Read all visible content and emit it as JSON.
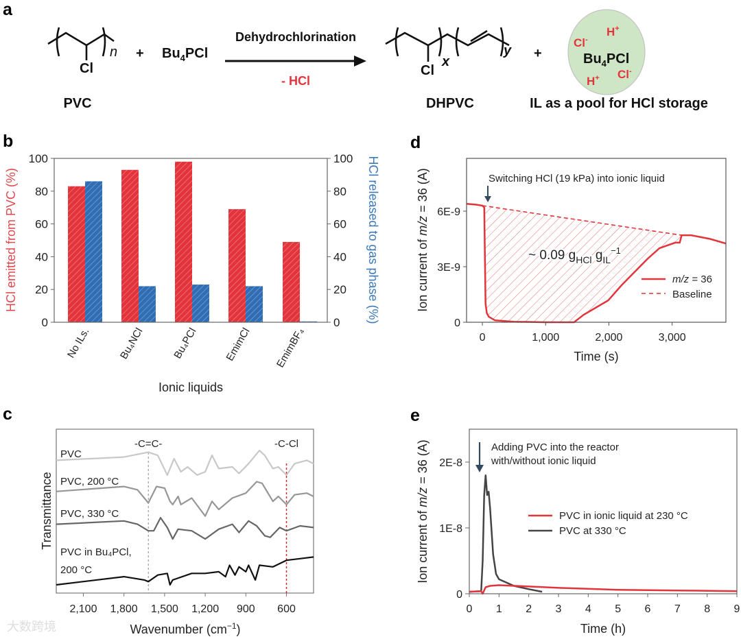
{
  "panel_labels": {
    "a": "a",
    "b": "b",
    "c": "c",
    "d": "d",
    "e": "e"
  },
  "scheme": {
    "reactant_label": "PVC",
    "reactant_cl": "Cl",
    "reactant_n": "n",
    "plus_1": "+",
    "reagent": {
      "a": "Bu",
      "sub": "4",
      "b": "PCl"
    },
    "arrow_top": "Dehydrochlorination",
    "arrow_bottom": "- HCl",
    "product_label": "DHPVC",
    "product_cl": "Cl",
    "product_x": "x",
    "product_y": "y",
    "plus_2": "+",
    "pool": {
      "center": {
        "a": "Bu",
        "sub": "4",
        "b": "PCl"
      },
      "h1": "H",
      "h1_sup": "+",
      "h2": "H",
      "h2_sup": "+",
      "cl1": "Cl",
      "cl1_sup": "-",
      "cl2": "Cl",
      "cl2_sup": "-"
    },
    "pool_label": "IL as a pool for HCl storage"
  },
  "colors": {
    "red": "#e2343a",
    "blue": "#2f6db5",
    "pool_fill": "#cfe6c6",
    "arrow": "#34495e"
  },
  "chart_data": [
    {
      "panel": "b",
      "type": "bar",
      "categories": [
        "No ILs.",
        "Bu₄NCl",
        "Bu₄PCl",
        "EmimCl",
        "EmimBF₄"
      ],
      "series": [
        {
          "name": "HCl emitted from PVC (%)",
          "axis": "left",
          "values": [
            83,
            93,
            98,
            69,
            49
          ]
        },
        {
          "name": "HCl released to gas phase (%)",
          "axis": "right",
          "values": [
            86,
            22,
            23,
            22,
            0.5
          ]
        }
      ],
      "xlabel": "Ionic liquids",
      "ylabel": "HCl emitted from PVC (%)",
      "ylabel_right": "HCl released to gas phase (%)",
      "ylim": [
        0,
        100
      ],
      "yticks": [
        "0",
        "20",
        "40",
        "60",
        "80",
        "100"
      ]
    },
    {
      "panel": "c",
      "type": "line",
      "xlabel": {
        "a": "Wavenumber (cm",
        "sup": "−1",
        "b": ")"
      },
      "ylabel": "Transmittance",
      "xlim": [
        2300,
        400
      ],
      "ylim": [
        0,
        1
      ],
      "xticks": [
        2100,
        1800,
        1500,
        1200,
        900,
        600
      ],
      "xtick_labels": [
        "2,100",
        "1,800",
        "1,500",
        "1,200",
        "900",
        "600"
      ],
      "annotations": [
        {
          "text": "-C=C-",
          "x": 1620
        },
        {
          "text": "-C-Cl",
          "x": 600
        }
      ],
      "series": [
        {
          "name": "PVC",
          "color": "#c8c8c8",
          "x": [
            2300,
            1800,
            1620,
            1550,
            1480,
            1430,
            1380,
            1330,
            1260,
            1200,
            1150,
            1100,
            1000,
            950,
            880,
            800,
            760,
            700,
            660,
            600,
            540,
            450,
            400
          ],
          "y": [
            0.81,
            0.83,
            0.86,
            0.84,
            0.72,
            0.82,
            0.74,
            0.77,
            0.72,
            0.74,
            0.84,
            0.76,
            0.77,
            0.73,
            0.79,
            0.87,
            0.84,
            0.76,
            0.77,
            0.72,
            0.79,
            0.81,
            0.79
          ]
        },
        {
          "name": "PVC, 200 °C",
          "color": "#969696",
          "x": [
            2300,
            1800,
            1700,
            1620,
            1560,
            1500,
            1460,
            1440,
            1400,
            1380,
            1300,
            1200,
            1150,
            1100,
            1000,
            900,
            820,
            780,
            700,
            660,
            600,
            540,
            450,
            400
          ],
          "y": [
            0.62,
            0.65,
            0.63,
            0.55,
            0.65,
            0.64,
            0.56,
            0.54,
            0.59,
            0.54,
            0.58,
            0.47,
            0.56,
            0.51,
            0.58,
            0.61,
            0.68,
            0.67,
            0.56,
            0.59,
            0.54,
            0.6,
            0.61,
            0.59
          ]
        },
        {
          "name": "PVC, 330 °C",
          "color": "#666666",
          "x": [
            2300,
            1800,
            1700,
            1620,
            1580,
            1530,
            1480,
            1440,
            1400,
            1300,
            1200,
            1100,
            1000,
            950,
            880,
            820,
            760,
            720,
            650,
            600,
            500,
            400
          ],
          "y": [
            0.42,
            0.44,
            0.42,
            0.38,
            0.38,
            0.46,
            0.4,
            0.33,
            0.39,
            0.38,
            0.33,
            0.39,
            0.42,
            0.37,
            0.44,
            0.41,
            0.35,
            0.34,
            0.4,
            0.38,
            0.41,
            0.4
          ]
        },
        {
          "name": "PVC in Bu₄PCl,",
          "name2": "200 °C",
          "color": "#111111",
          "x": [
            2300,
            1800,
            1650,
            1620,
            1550,
            1480,
            1460,
            1440,
            1300,
            1200,
            1100,
            1050,
            1020,
            980,
            950,
            900,
            880,
            830,
            800,
            700,
            600,
            500,
            400
          ],
          "y": [
            0.05,
            0.1,
            0.08,
            0.07,
            0.11,
            0.12,
            0.05,
            0.08,
            0.12,
            0.12,
            0.13,
            0.1,
            0.17,
            0.11,
            0.16,
            0.13,
            0.17,
            0.08,
            0.17,
            0.16,
            0.2,
            0.21,
            0.22
          ]
        }
      ]
    },
    {
      "panel": "d",
      "type": "line",
      "xlabel": "Time (s)",
      "ylabel": {
        "a": "Ion current of ",
        "i": "m/z",
        "b": " = 36 (A)"
      },
      "xlim": [
        -250,
        3850
      ],
      "ylim": [
        0,
        8.85e-09
      ],
      "xticks": [
        0,
        1000,
        2000,
        3000
      ],
      "xtick_labels": [
        "0",
        "1,000",
        "2,000",
        "3,000"
      ],
      "yticks": [
        0,
        3e-09,
        6e-09
      ],
      "ytick_labels": [
        "0",
        "3E-9",
        "6E-9"
      ],
      "annotation": "Switching HCl (19 kPa) into ionic liquid",
      "area_label": {
        "a": "~ 0.09 g",
        "s1": "HCl",
        "b": " g",
        "s2": "IL",
        "sup": "−1"
      },
      "legend": [
        {
          "i": "m/z",
          "b": " = 36"
        },
        {
          "b": "Baseline"
        }
      ],
      "series": [
        {
          "name": "m/z = 36",
          "x": [
            -250,
            -100,
            0,
            30,
            50,
            70,
            100,
            200,
            500,
            1000,
            1450,
            1600,
            1990,
            2200,
            2616,
            2800,
            3050,
            3120,
            3150,
            3300,
            3600,
            3850
          ],
          "y": [
            6.4e-09,
            6.35e-09,
            6.3e-09,
            6.2e-09,
            1e-09,
            5e-10,
            3e-10,
            1e-10,
            3e-11,
            0,
            0,
            4e-10,
            1.18e-09,
            2e-09,
            3.44e-09,
            4e-09,
            4.3e-09,
            4.3e-09,
            4.7e-09,
            4.7e-09,
            4.5e-09,
            4.25e-09
          ]
        },
        {
          "name": "Baseline",
          "x": [
            0,
            3150
          ],
          "y": [
            6.3e-09,
            4.7e-09
          ]
        }
      ]
    },
    {
      "panel": "e",
      "type": "line",
      "xlabel": "Time (h)",
      "ylabel": {
        "a": "Ion current of ",
        "i": "m/z",
        "b": " = 36 (A)"
      },
      "xlim": [
        0,
        9
      ],
      "ylim": [
        0,
        2.5e-08
      ],
      "xticks": [
        0,
        1,
        2,
        3,
        4,
        5,
        6,
        7,
        8,
        9
      ],
      "xtick_labels": [
        "0",
        "1",
        "2",
        "3",
        "4",
        "5",
        "6",
        "7",
        "8",
        "9"
      ],
      "yticks": [
        0,
        1e-08,
        2e-08
      ],
      "ytick_labels": [
        "0",
        "1E-8",
        "2E-8"
      ],
      "annotation": [
        "Adding PVC into the reactor",
        "with/without ionic liquid"
      ],
      "series": [
        {
          "name": "PVC in ionic liquid at 230 °C",
          "color": "#e2343a",
          "x": [
            0,
            0.4,
            0.45,
            0.55,
            0.7,
            1.0,
            2,
            3,
            5,
            7,
            9
          ],
          "y": [
            3e-10,
            4e-10,
            0.0,
            1e-09,
            1.2e-09,
            1.3e-09,
            1.1e-09,
            9e-10,
            6e-10,
            5e-10,
            4e-10
          ]
        },
        {
          "name": "PVC at 330 °C",
          "color": "#444444",
          "x": [
            0,
            0.4,
            0.45,
            0.5,
            0.55,
            0.6,
            0.65,
            0.7,
            0.8,
            0.9,
            1.0,
            1.5,
            2.0,
            2.45
          ],
          "y": [
            3e-10,
            4e-10,
            5e-09,
            1.5e-08,
            1.8e-08,
            1.5e-08,
            1.55e-08,
            1.3e-08,
            6e-09,
            3e-09,
            2.2e-09,
            1.2e-09,
            7e-10,
            3e-10
          ]
        }
      ]
    }
  ],
  "watermark": "大数跨境"
}
